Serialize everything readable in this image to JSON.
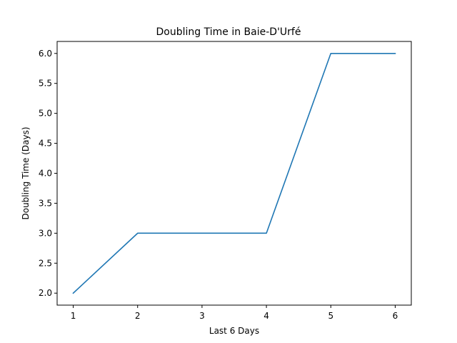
{
  "chart_data": {
    "type": "line",
    "title": "Doubling Time in  Baie-D'Urfé",
    "xlabel": "Last 6 Days",
    "ylabel": "Doubling Time (Days)",
    "x": [
      1,
      2,
      3,
      4,
      5,
      6
    ],
    "series": [
      {
        "values": [
          2.0,
          3.0,
          3.0,
          3.0,
          6.0,
          6.0
        ]
      }
    ],
    "xticks": [
      "1",
      "2",
      "3",
      "4",
      "5",
      "6"
    ],
    "yticks": [
      "2.0",
      "2.5",
      "3.0",
      "3.5",
      "4.0",
      "4.5",
      "5.0",
      "5.5",
      "6.0"
    ],
    "xlim": [
      0.75,
      6.25
    ],
    "ylim": [
      1.8,
      6.2
    ],
    "grid": false,
    "line_color": "#1f77b4"
  }
}
